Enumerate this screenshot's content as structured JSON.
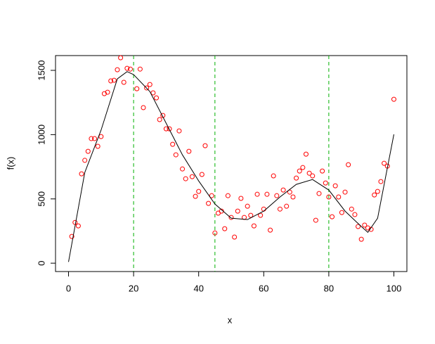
{
  "chart_data": {
    "type": "scatter",
    "xlabel": "x",
    "ylabel": "f(x)",
    "xlim": [
      -4,
      104
    ],
    "ylim": [
      -65,
      1615
    ],
    "xticks": [
      0,
      20,
      40,
      60,
      80,
      100
    ],
    "yticks": [
      0,
      500,
      1000,
      1500
    ],
    "series": [
      {
        "type": "scatter",
        "color": "#ff0000",
        "x": [
          1,
          2,
          3,
          4,
          5,
          6,
          7,
          8,
          9,
          10,
          11,
          12,
          13,
          14,
          15,
          16,
          17,
          18,
          19,
          21,
          22,
          23,
          24,
          25,
          26,
          27,
          28,
          29,
          30,
          31,
          32,
          33,
          34,
          35,
          36,
          37,
          38,
          39,
          40,
          41,
          42,
          43,
          44,
          45,
          46,
          47,
          48,
          49,
          50,
          51,
          52,
          53,
          54,
          55,
          56,
          57,
          58,
          59,
          60,
          61,
          62,
          63,
          64,
          65,
          66,
          67,
          68,
          69,
          70,
          71,
          72,
          73,
          74,
          75,
          76,
          77,
          78,
          79,
          80,
          81,
          82,
          83,
          84,
          85,
          86,
          87,
          88,
          89,
          90,
          91,
          92,
          93,
          94,
          95,
          96,
          97,
          98,
          100
        ],
        "values": [
          208,
          317,
          290,
          695,
          800,
          870,
          969,
          969,
          909,
          985,
          1319,
          1330,
          1418,
          1423,
          1505,
          1598,
          1407,
          1516,
          1510,
          1357,
          1510,
          1210,
          1363,
          1390,
          1325,
          1286,
          1117,
          1149,
          1045,
          1045,
          925,
          843,
          1029,
          733,
          657,
          870,
          673,
          520,
          558,
          690,
          914,
          465,
          525,
          235,
          389,
          405,
          268,
          525,
          356,
          203,
          405,
          504,
          356,
          443,
          372,
          290,
          536,
          372,
          421,
          536,
          257,
          679,
          525,
          421,
          569,
          443,
          553,
          515,
          662,
          717,
          744,
          848,
          700,
          679,
          334,
          542,
          717,
          624,
          515,
          361,
          602,
          515,
          394,
          553,
          766,
          421,
          378,
          285,
          186,
          296,
          274,
          263,
          531,
          558,
          635,
          777,
          755,
          1275
        ]
      },
      {
        "type": "line",
        "color": "#000000",
        "x": [
          0,
          5,
          10,
          15,
          18,
          20,
          25,
          30,
          35,
          40,
          45,
          50,
          55,
          60,
          65,
          70,
          75,
          80,
          85,
          90,
          92,
          95,
          100
        ],
        "values": [
          10,
          706,
          1035,
          1434,
          1490,
          1467,
          1335,
          1089,
          843,
          640,
          460,
          350,
          339,
          405,
          515,
          613,
          651,
          569,
          405,
          285,
          240,
          350,
          1002
        ]
      }
    ],
    "vlines": [
      20,
      45,
      80
    ],
    "vline_color": "#00b000"
  }
}
